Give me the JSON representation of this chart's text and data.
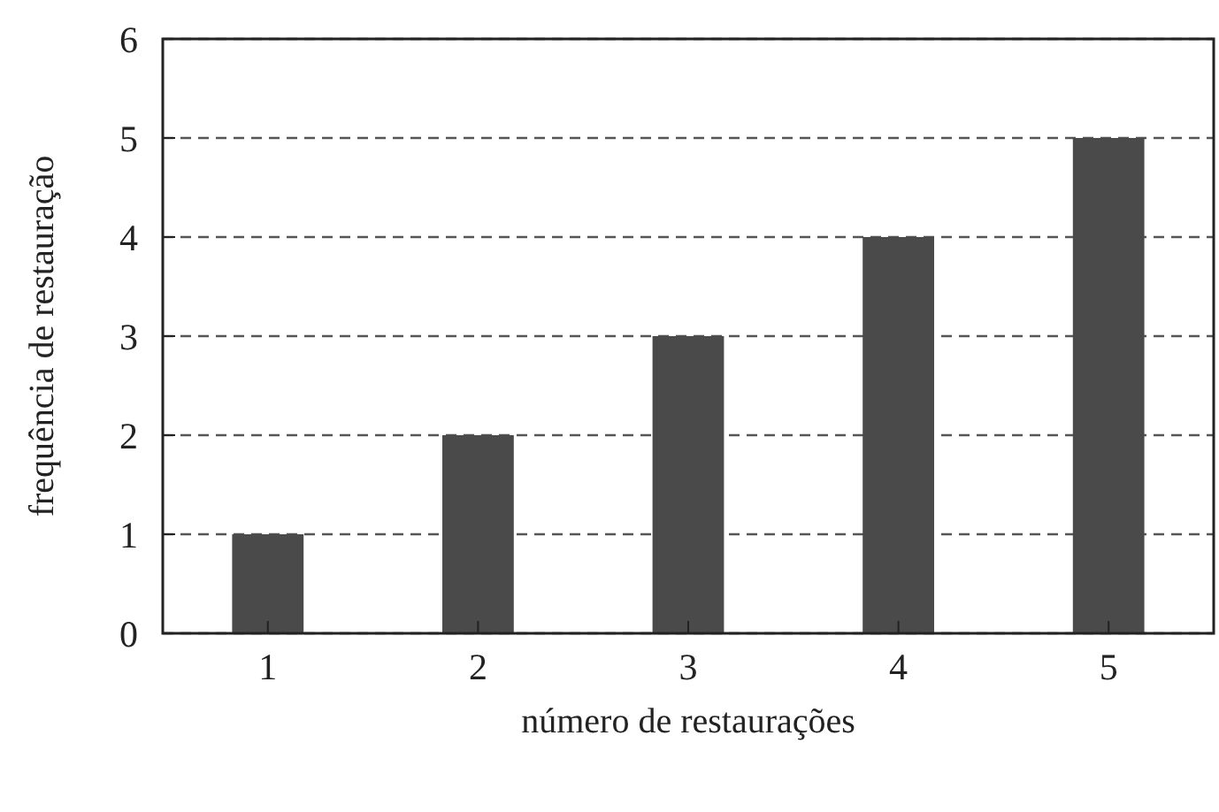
{
  "chart_data": {
    "type": "bar",
    "xlabel": "número de restaurações",
    "ylabel": "frequência de restauração",
    "categories": [
      "1",
      "2",
      "3",
      "4",
      "5"
    ],
    "values": [
      1,
      2,
      3,
      4,
      5
    ],
    "color": "#4a4a4a",
    "ylim": [
      0,
      6
    ],
    "yticks": [
      0,
      1,
      2,
      3,
      4,
      5,
      6
    ],
    "grid": "y",
    "line_style": "dashed"
  }
}
